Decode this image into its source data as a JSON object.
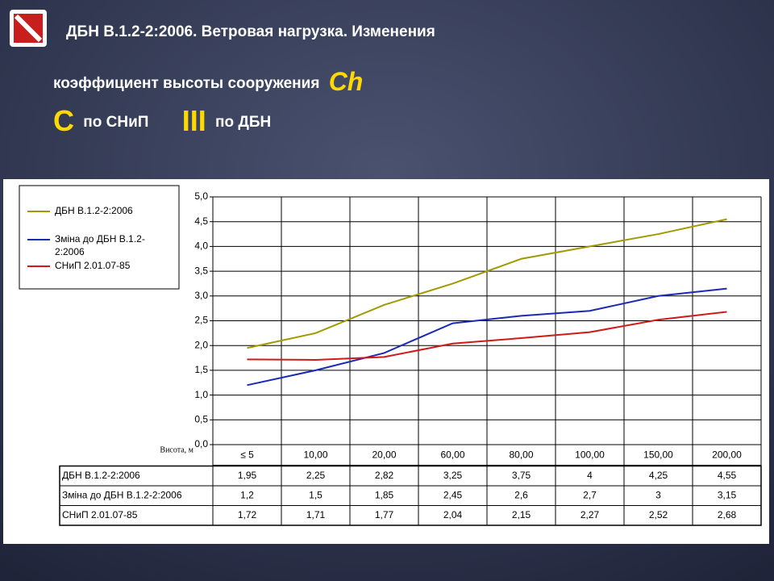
{
  "header": {
    "title": "ДБН В.1.2-2:2006. Ветровая нагрузка. Изменения",
    "subtitle": "коэффициент высоты сооружения",
    "symbol": "Ch",
    "old_mark": "C",
    "old_text": "по СНиП",
    "new_mark": "III",
    "new_text": "по ДБН"
  },
  "chart_data": {
    "type": "line",
    "x_label": "Висота, м",
    "categories": [
      "≤ 5",
      "10,00",
      "20,00",
      "60,00",
      "80,00",
      "100,00",
      "150,00",
      "200,00"
    ],
    "series": [
      {
        "name": "ДБН В.1.2-2:2006",
        "color": "#a09a00",
        "values": [
          1.95,
          2.25,
          2.82,
          3.25,
          3.75,
          4,
          4.25,
          4.55
        ],
        "value_labels": [
          "1,95",
          "2,25",
          "2,82",
          "3,25",
          "3,75",
          "4",
          "4,25",
          "4,55"
        ]
      },
      {
        "name": "Зміна до ДБН В.1.2-2:2006",
        "color": "#1a2ab4",
        "values": [
          1.2,
          1.5,
          1.85,
          2.45,
          2.6,
          2.7,
          3,
          3.15
        ],
        "value_labels": [
          "1,2",
          "1,5",
          "1,85",
          "2,45",
          "2,6",
          "2,7",
          "3",
          "3,15"
        ]
      },
      {
        "name": "СНиП 2.01.07-85",
        "color": "#d01a1a",
        "values": [
          1.72,
          1.71,
          1.77,
          2.04,
          2.15,
          2.27,
          2.52,
          2.68
        ],
        "value_labels": [
          "1,72",
          "1,71",
          "1,77",
          "2,04",
          "2,15",
          "2,27",
          "2,52",
          "2,68"
        ]
      }
    ],
    "ylim": [
      0,
      5
    ],
    "yticks": [
      {
        "value": 0,
        "label": "0,0"
      },
      {
        "value": 0.5,
        "label": "0,5"
      },
      {
        "value": 1,
        "label": "1,0"
      },
      {
        "value": 1.5,
        "label": "1,5"
      },
      {
        "value": 2,
        "label": "2,0"
      },
      {
        "value": 2.5,
        "label": "2,5"
      },
      {
        "value": 3,
        "label": "3,0"
      },
      {
        "value": 3.5,
        "label": "3,5"
      },
      {
        "value": 4,
        "label": "4,0"
      },
      {
        "value": 4.5,
        "label": "4,5"
      },
      {
        "value": 5,
        "label": "5,0"
      }
    ],
    "grid": true,
    "legend": "upper-left"
  }
}
